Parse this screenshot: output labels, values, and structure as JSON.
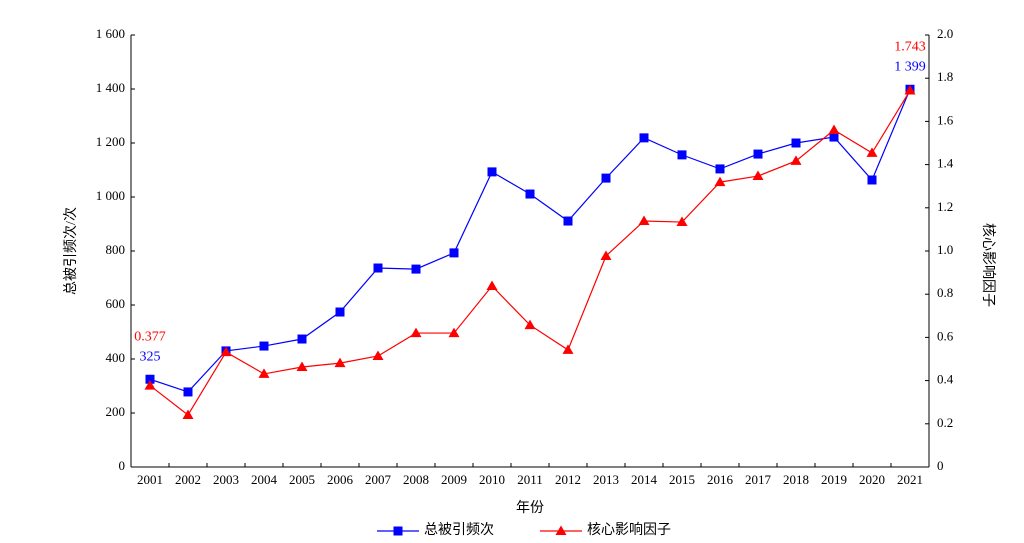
{
  "chart_data": {
    "type": "line",
    "x_label": "年份",
    "y_label": "总被引频次/次",
    "y2_label": "核心影响因子",
    "categories": [
      "2001",
      "2002",
      "2003",
      "2004",
      "2005",
      "2006",
      "2007",
      "2008",
      "2009",
      "2010",
      "2011",
      "2012",
      "2013",
      "2014",
      "2015",
      "2016",
      "2017",
      "2018",
      "2019",
      "2020",
      "2021"
    ],
    "series": [
      {
        "name": "总被引频次",
        "color": "#0000ff",
        "marker": "square",
        "values": [
          325,
          278,
          430,
          448,
          474,
          574,
          737,
          733,
          793,
          1093,
          1011,
          911,
          1070,
          1219,
          1156,
          1104,
          1159,
          1200,
          1222,
          1063,
          1399
        ],
        "value_labels": [
          "325",
          null,
          null,
          null,
          null,
          null,
          null,
          null,
          null,
          null,
          null,
          null,
          null,
          null,
          null,
          null,
          null,
          null,
          null,
          null,
          "1 399"
        ]
      },
      {
        "name": "核心影响因子",
        "color": "#ff0000",
        "marker": "triangle",
        "axis": "y2",
        "values": [
          0.377,
          0.241,
          0.532,
          0.431,
          0.463,
          0.481,
          0.514,
          0.62,
          0.62,
          0.838,
          0.657,
          0.542,
          0.977,
          1.139,
          1.134,
          1.319,
          1.347,
          1.417,
          1.56,
          1.454,
          1.743
        ],
        "value_labels": [
          "0.377",
          null,
          null,
          null,
          null,
          null,
          null,
          null,
          null,
          null,
          null,
          null,
          null,
          null,
          null,
          null,
          null,
          null,
          null,
          null,
          "1.743"
        ]
      }
    ],
    "ylim": [
      0,
      1600
    ],
    "yticks": [
      0,
      200,
      400,
      600,
      800,
      {
        "value": 1000,
        "label": "1 000"
      },
      {
        "value": 1200,
        "label": "1 200"
      },
      {
        "value": 1400,
        "label": "1 400"
      },
      {
        "value": 1600,
        "label": "1 600"
      }
    ],
    "y2lim": [
      0,
      2
    ],
    "y2ticks": [
      0,
      0.2,
      0.4,
      0.6,
      0.8,
      {
        "value": 1,
        "label": "1.0"
      },
      1.2,
      1.4,
      1.6,
      1.8,
      {
        "value": 2,
        "label": "2.0"
      }
    ],
    "legend": "bottom"
  }
}
